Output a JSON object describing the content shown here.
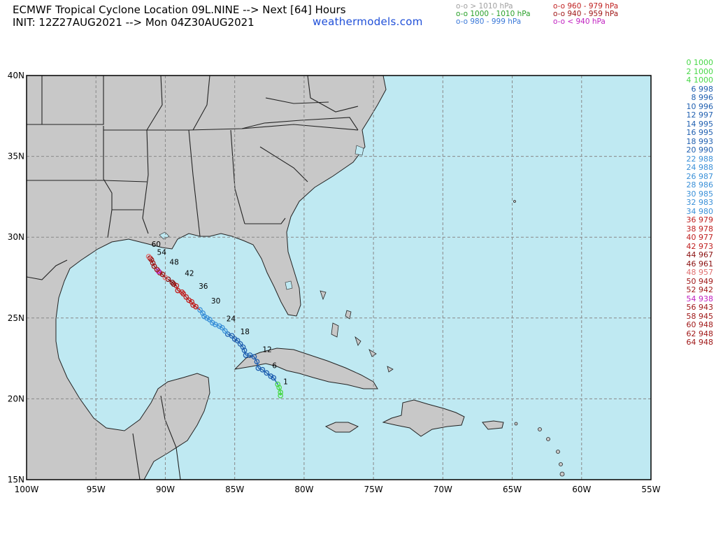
{
  "header": {
    "title_line1": "ECMWF Tropical Cyclone Location 09L.NINE --> Next [64] Hours",
    "title_line2": "INIT: 12Z27AUG2021 --> Mon 04Z30AUG2021",
    "website": "weathermodels.com"
  },
  "legend": [
    {
      "text": "o-o > 1010 hPa",
      "color": "#a0a0a0"
    },
    {
      "text": "o-o 1000 - 1010 hPa",
      "color": "#2aa02a"
    },
    {
      "text": "o-o 980 - 999 hPa",
      "color": "#3a78d8"
    },
    {
      "text": "o-o 960 - 979 hPa",
      "color": "#c02020"
    },
    {
      "text": "o-o 940 - 959 hPa",
      "color": "#a01818"
    },
    {
      "text": "o-o < 940 hPa",
      "color": "#c020c0"
    }
  ],
  "forecast_table": [
    {
      "hour": 0,
      "pressure": 1000,
      "color": "#48d848"
    },
    {
      "hour": 2,
      "pressure": 1000,
      "color": "#48d848"
    },
    {
      "hour": 4,
      "pressure": 1000,
      "color": "#48d848"
    },
    {
      "hour": 6,
      "pressure": 998,
      "color": "#1f5fb0"
    },
    {
      "hour": 8,
      "pressure": 996,
      "color": "#1f5fb0"
    },
    {
      "hour": 10,
      "pressure": 996,
      "color": "#1f5fb0"
    },
    {
      "hour": 12,
      "pressure": 997,
      "color": "#1f5fb0"
    },
    {
      "hour": 14,
      "pressure": 995,
      "color": "#1f5fb0"
    },
    {
      "hour": 16,
      "pressure": 995,
      "color": "#1f5fb0"
    },
    {
      "hour": 18,
      "pressure": 993,
      "color": "#1f5fb0"
    },
    {
      "hour": 20,
      "pressure": 990,
      "color": "#1f5fb0"
    },
    {
      "hour": 22,
      "pressure": 988,
      "color": "#3a90d8"
    },
    {
      "hour": 24,
      "pressure": 988,
      "color": "#3a90d8"
    },
    {
      "hour": 26,
      "pressure": 987,
      "color": "#3a90d8"
    },
    {
      "hour": 28,
      "pressure": 986,
      "color": "#3a90d8"
    },
    {
      "hour": 30,
      "pressure": 985,
      "color": "#3a90d8"
    },
    {
      "hour": 32,
      "pressure": 983,
      "color": "#3a90d8"
    },
    {
      "hour": 34,
      "pressure": 980,
      "color": "#3a90d8"
    },
    {
      "hour": 36,
      "pressure": 979,
      "color": "#c02020"
    },
    {
      "hour": 38,
      "pressure": 978,
      "color": "#c02020"
    },
    {
      "hour": 40,
      "pressure": 977,
      "color": "#c02020"
    },
    {
      "hour": 42,
      "pressure": 973,
      "color": "#c02020"
    },
    {
      "hour": 44,
      "pressure": 967,
      "color": "#8a1010"
    },
    {
      "hour": 46,
      "pressure": 961,
      "color": "#8a1010"
    },
    {
      "hour": 48,
      "pressure": 957,
      "color": "#e07070"
    },
    {
      "hour": 50,
      "pressure": 949,
      "color": "#a01818"
    },
    {
      "hour": 52,
      "pressure": 942,
      "color": "#a01818"
    },
    {
      "hour": 54,
      "pressure": 938,
      "color": "#c020c0"
    },
    {
      "hour": 56,
      "pressure": 943,
      "color": "#a01818"
    },
    {
      "hour": 58,
      "pressure": 945,
      "color": "#a01818"
    },
    {
      "hour": 60,
      "pressure": 948,
      "color": "#a01818"
    },
    {
      "hour": 62,
      "pressure": 948,
      "color": "#a01818"
    },
    {
      "hour": 64,
      "pressure": 948,
      "color": "#a01818"
    }
  ],
  "map": {
    "lon_range": [
      -100,
      -55
    ],
    "lat_range": [
      15,
      40
    ],
    "lon_ticks": [
      "100W",
      "95W",
      "90W",
      "85W",
      "80W",
      "75W",
      "70W",
      "65W",
      "60W",
      "55W"
    ],
    "lat_ticks": [
      "15N",
      "20N",
      "25N",
      "30N",
      "35N",
      "40N"
    ],
    "ocean_color": "#bfe9f2",
    "land_color": "#c8c8c8",
    "track": [
      {
        "hour": 1,
        "lon": -81.7,
        "lat": 20.2,
        "color": "#48d848"
      },
      {
        "hour": 2,
        "lon": -81.7,
        "lat": 20.4,
        "color": "#48d848"
      },
      {
        "hour": 3,
        "lon": -81.8,
        "lat": 20.7,
        "color": "#48d848"
      },
      {
        "hour": 4,
        "lon": -81.9,
        "lat": 20.9,
        "color": "#48d848"
      },
      {
        "hour": 5,
        "lon": -82.2,
        "lat": 21.3,
        "color": "#1f5fb0"
      },
      {
        "hour": 6,
        "lon": -82.4,
        "lat": 21.4,
        "color": "#1f5fb0"
      },
      {
        "hour": 7,
        "lon": -82.7,
        "lat": 21.6,
        "color": "#1f5fb0"
      },
      {
        "hour": 8,
        "lon": -83.0,
        "lat": 21.8,
        "color": "#1f5fb0"
      },
      {
        "hour": 9,
        "lon": -83.3,
        "lat": 21.9,
        "color": "#1f5fb0"
      },
      {
        "hour": 10,
        "lon": -83.4,
        "lat": 22.3,
        "color": "#1f5fb0"
      },
      {
        "hour": 11,
        "lon": -83.6,
        "lat": 22.6,
        "color": "#1f5fb0"
      },
      {
        "hour": 12,
        "lon": -83.9,
        "lat": 22.7,
        "color": "#1f5fb0"
      },
      {
        "hour": 13,
        "lon": -84.2,
        "lat": 22.7,
        "color": "#1f5fb0"
      },
      {
        "hour": 14,
        "lon": -84.3,
        "lat": 23.0,
        "color": "#1f5fb0"
      },
      {
        "hour": 15,
        "lon": -84.4,
        "lat": 23.2,
        "color": "#1f5fb0"
      },
      {
        "hour": 16,
        "lon": -84.6,
        "lat": 23.4,
        "color": "#1f5fb0"
      },
      {
        "hour": 17,
        "lon": -84.8,
        "lat": 23.6,
        "color": "#1f5fb0"
      },
      {
        "hour": 18,
        "lon": -85.0,
        "lat": 23.7,
        "color": "#1f5fb0"
      },
      {
        "hour": 19,
        "lon": -85.2,
        "lat": 23.9,
        "color": "#1f5fb0"
      },
      {
        "hour": 20,
        "lon": -85.5,
        "lat": 24.0,
        "color": "#1f5fb0"
      },
      {
        "hour": 21,
        "lon": -85.7,
        "lat": 24.2,
        "color": "#3a90d8"
      },
      {
        "hour": 22,
        "lon": -85.9,
        "lat": 24.4,
        "color": "#3a90d8"
      },
      {
        "hour": 23,
        "lon": -86.1,
        "lat": 24.5,
        "color": "#3a90d8"
      },
      {
        "hour": 24,
        "lon": -86.4,
        "lat": 24.6,
        "color": "#3a90d8"
      },
      {
        "hour": 25,
        "lon": -86.6,
        "lat": 24.7,
        "color": "#3a90d8"
      },
      {
        "hour": 26,
        "lon": -86.8,
        "lat": 24.9,
        "color": "#3a90d8"
      },
      {
        "hour": 27,
        "lon": -87.0,
        "lat": 25.0,
        "color": "#3a90d8"
      },
      {
        "hour": 28,
        "lon": -87.2,
        "lat": 25.1,
        "color": "#3a90d8"
      },
      {
        "hour": 29,
        "lon": -87.3,
        "lat": 25.3,
        "color": "#3a90d8"
      },
      {
        "hour": 30,
        "lon": -87.5,
        "lat": 25.5,
        "color": "#3a90d8"
      },
      {
        "hour": 31,
        "lon": -87.8,
        "lat": 25.7,
        "color": "#c02020"
      },
      {
        "hour": 32,
        "lon": -88.0,
        "lat": 25.8,
        "color": "#c02020"
      },
      {
        "hour": 33,
        "lon": -88.1,
        "lat": 26.0,
        "color": "#c02020"
      },
      {
        "hour": 34,
        "lon": -88.3,
        "lat": 26.1,
        "color": "#c02020"
      },
      {
        "hour": 35,
        "lon": -88.5,
        "lat": 26.3,
        "color": "#c02020"
      },
      {
        "hour": 36,
        "lon": -88.7,
        "lat": 26.5,
        "color": "#c02020"
      },
      {
        "hour": 37,
        "lon": -88.8,
        "lat": 26.6,
        "color": "#c02020"
      },
      {
        "hour": 38,
        "lon": -89.1,
        "lat": 26.7,
        "color": "#c02020"
      },
      {
        "hour": 39,
        "lon": -89.2,
        "lat": 27.0,
        "color": "#c02020"
      },
      {
        "hour": 40,
        "lon": -89.4,
        "lat": 27.1,
        "color": "#8a1010"
      },
      {
        "hour": 41,
        "lon": -89.5,
        "lat": 27.2,
        "color": "#8a1010"
      },
      {
        "hour": 42,
        "lon": -89.8,
        "lat": 27.4,
        "color": "#8a1010"
      },
      {
        "hour": 43,
        "lon": -90.0,
        "lat": 27.5,
        "color": "#e07070"
      },
      {
        "hour": 44,
        "lon": -90.2,
        "lat": 27.7,
        "color": "#a01818"
      },
      {
        "hour": 45,
        "lon": -90.4,
        "lat": 27.8,
        "color": "#a01818"
      },
      {
        "hour": 46,
        "lon": -90.5,
        "lat": 27.9,
        "color": "#c020c0"
      },
      {
        "hour": 47,
        "lon": -90.6,
        "lat": 28.0,
        "color": "#a01818"
      },
      {
        "hour": 48,
        "lon": -90.8,
        "lat": 28.2,
        "color": "#a01818"
      },
      {
        "hour": 49,
        "lon": -90.9,
        "lat": 28.4,
        "color": "#a01818"
      },
      {
        "hour": 50,
        "lon": -91.0,
        "lat": 28.6,
        "color": "#a01818"
      },
      {
        "hour": 51,
        "lon": -91.1,
        "lat": 28.7,
        "color": "#a01818"
      },
      {
        "hour": 52,
        "lon": -91.2,
        "lat": 28.8,
        "color": "#e07070"
      }
    ],
    "track_labels": [
      {
        "text": "1",
        "lon": -81.5,
        "lat": 20.9
      },
      {
        "text": "6",
        "lon": -82.3,
        "lat": 21.9
      },
      {
        "text": "12",
        "lon": -83.0,
        "lat": 22.9
      },
      {
        "text": "18",
        "lon": -84.6,
        "lat": 24.0
      },
      {
        "text": "24",
        "lon": -85.6,
        "lat": 24.8
      },
      {
        "text": "30",
        "lon": -86.7,
        "lat": 25.9
      },
      {
        "text": "36",
        "lon": -87.6,
        "lat": 26.8
      },
      {
        "text": "42",
        "lon": -88.6,
        "lat": 27.6
      },
      {
        "text": "48",
        "lon": -89.7,
        "lat": 28.3
      },
      {
        "text": "54",
        "lon": -90.6,
        "lat": 28.9
      },
      {
        "text": "60",
        "lon": -91.0,
        "lat": 29.4
      }
    ]
  }
}
